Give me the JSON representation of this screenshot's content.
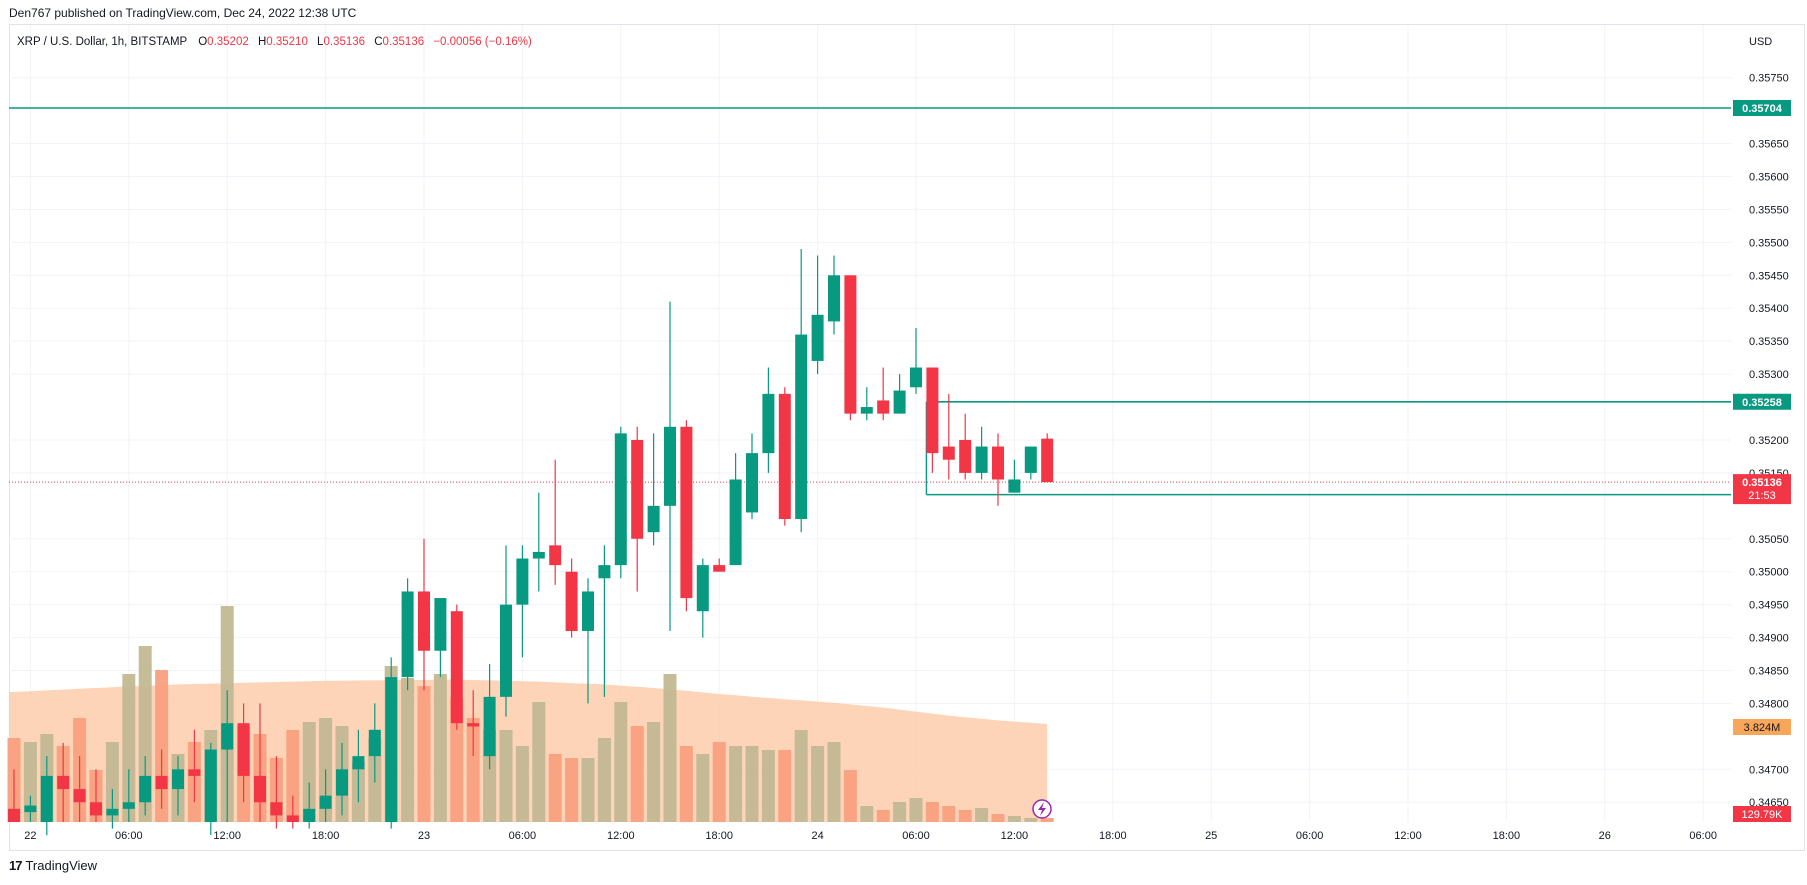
{
  "header": {
    "published": "Den767 published on TradingView.com, Dec 24, 2022 12:38 UTC"
  },
  "legend": {
    "symbol": "XRP / U.S. Dollar, 1h, BITSTAMP",
    "o_label": "O",
    "o_value": "0.35202",
    "h_label": "H",
    "h_value": "0.35210",
    "l_label": "L",
    "l_value": "0.35136",
    "c_label": "C",
    "c_value": "0.35136",
    "change": "−0.00056 (−0.16%)"
  },
  "footer": {
    "logo_glyph": "17",
    "brand": "TradingView"
  },
  "colors": {
    "up": "#089981",
    "down": "#f23645",
    "vol_up": "#c2b892",
    "vol_down": "#f9a07e",
    "vol_ma": "#fcc9a6",
    "grid": "#f0f3fa",
    "axis_text": "#131722",
    "level_line": "#089981",
    "price_line": "#f23645"
  },
  "chart_data": {
    "type": "candlestick",
    "currency_label": "USD",
    "ylim": [
      0.3462,
      0.3583
    ],
    "y_ticks": [
      "0.35750",
      "0.35650",
      "0.35600",
      "0.35550",
      "0.35500",
      "0.35450",
      "0.35400",
      "0.35350",
      "0.35300",
      "0.35200",
      "0.35150",
      "0.35050",
      "0.35000",
      "0.34950",
      "0.34900",
      "0.34850",
      "0.34800",
      "0.34700",
      "0.34650"
    ],
    "x_ticks": [
      {
        "label": "22",
        "hour": 1
      },
      {
        "label": "06:00",
        "hour": 7
      },
      {
        "label": "12:00",
        "hour": 13
      },
      {
        "label": "18:00",
        "hour": 19
      },
      {
        "label": "23",
        "hour": 25
      },
      {
        "label": "06:00",
        "hour": 31
      },
      {
        "label": "12:00",
        "hour": 37
      },
      {
        "label": "18:00",
        "hour": 43
      },
      {
        "label": "24",
        "hour": 49
      },
      {
        "label": "06:00",
        "hour": 55
      },
      {
        "label": "12:00",
        "hour": 61
      },
      {
        "label": "18:00",
        "hour": 67
      },
      {
        "label": "25",
        "hour": 73
      },
      {
        "label": "06:00",
        "hour": 79
      },
      {
        "label": "12:00",
        "hour": 85
      },
      {
        "label": "18:00",
        "hour": 91
      },
      {
        "label": "26",
        "hour": 97
      },
      {
        "label": "06:00",
        "hour": 103
      }
    ],
    "candles": [
      {
        "o": 0.3464,
        "h": 0.347,
        "l": 0.3462,
        "c": 0.3462
      },
      {
        "o": 0.34635,
        "h": 0.3466,
        "l": 0.3462,
        "c": 0.34645
      },
      {
        "o": 0.3462,
        "h": 0.3472,
        "l": 0.346,
        "c": 0.3469
      },
      {
        "o": 0.3469,
        "h": 0.3474,
        "l": 0.3462,
        "c": 0.3467
      },
      {
        "o": 0.3467,
        "h": 0.3472,
        "l": 0.3462,
        "c": 0.3465
      },
      {
        "o": 0.3465,
        "h": 0.347,
        "l": 0.3462,
        "c": 0.3463
      },
      {
        "o": 0.3463,
        "h": 0.3467,
        "l": 0.3461,
        "c": 0.3464
      },
      {
        "o": 0.3464,
        "h": 0.347,
        "l": 0.3462,
        "c": 0.3465
      },
      {
        "o": 0.3465,
        "h": 0.3472,
        "l": 0.3463,
        "c": 0.3469
      },
      {
        "o": 0.3469,
        "h": 0.3473,
        "l": 0.3464,
        "c": 0.3467
      },
      {
        "o": 0.3467,
        "h": 0.3472,
        "l": 0.3463,
        "c": 0.347
      },
      {
        "o": 0.347,
        "h": 0.3476,
        "l": 0.3465,
        "c": 0.3469
      },
      {
        "o": 0.3462,
        "h": 0.3474,
        "l": 0.346,
        "c": 0.3473
      },
      {
        "o": 0.3473,
        "h": 0.3482,
        "l": 0.3462,
        "c": 0.3477
      },
      {
        "o": 0.3477,
        "h": 0.348,
        "l": 0.3465,
        "c": 0.3469
      },
      {
        "o": 0.3469,
        "h": 0.348,
        "l": 0.3462,
        "c": 0.3465
      },
      {
        "o": 0.3465,
        "h": 0.3472,
        "l": 0.3461,
        "c": 0.3463
      },
      {
        "o": 0.3463,
        "h": 0.3466,
        "l": 0.3461,
        "c": 0.3462
      },
      {
        "o": 0.3462,
        "h": 0.3468,
        "l": 0.3461,
        "c": 0.3464
      },
      {
        "o": 0.3464,
        "h": 0.347,
        "l": 0.3462,
        "c": 0.3466
      },
      {
        "o": 0.3466,
        "h": 0.3474,
        "l": 0.3463,
        "c": 0.347
      },
      {
        "o": 0.347,
        "h": 0.3476,
        "l": 0.3465,
        "c": 0.3472
      },
      {
        "o": 0.3472,
        "h": 0.348,
        "l": 0.3468,
        "c": 0.3476
      },
      {
        "o": 0.3462,
        "h": 0.3487,
        "l": 0.3461,
        "c": 0.3484
      },
      {
        "o": 0.3484,
        "h": 0.3499,
        "l": 0.3482,
        "c": 0.3497
      },
      {
        "o": 0.3497,
        "h": 0.3505,
        "l": 0.3482,
        "c": 0.3488
      },
      {
        "o": 0.3488,
        "h": 0.3496,
        "l": 0.3484,
        "c": 0.3496
      },
      {
        "o": 0.3494,
        "h": 0.3495,
        "l": 0.3476,
        "c": 0.3477
      },
      {
        "o": 0.3477,
        "h": 0.3482,
        "l": 0.3472,
        "c": 0.34765
      },
      {
        "o": 0.3472,
        "h": 0.3486,
        "l": 0.347,
        "c": 0.3481
      },
      {
        "o": 0.3481,
        "h": 0.3504,
        "l": 0.3478,
        "c": 0.3495
      },
      {
        "o": 0.3495,
        "h": 0.3504,
        "l": 0.3487,
        "c": 0.3502
      },
      {
        "o": 0.3502,
        "h": 0.3512,
        "l": 0.3497,
        "c": 0.3503
      },
      {
        "o": 0.3504,
        "h": 0.3517,
        "l": 0.3498,
        "c": 0.3501
      },
      {
        "o": 0.35,
        "h": 0.3502,
        "l": 0.349,
        "c": 0.3491
      },
      {
        "o": 0.3491,
        "h": 0.3499,
        "l": 0.348,
        "c": 0.3497
      },
      {
        "o": 0.3499,
        "h": 0.3504,
        "l": 0.3481,
        "c": 0.3501
      },
      {
        "o": 0.3501,
        "h": 0.3522,
        "l": 0.3499,
        "c": 0.3521
      },
      {
        "o": 0.352,
        "h": 0.3522,
        "l": 0.3497,
        "c": 0.3505
      },
      {
        "o": 0.3506,
        "h": 0.3521,
        "l": 0.3504,
        "c": 0.351
      },
      {
        "o": 0.351,
        "h": 0.3541,
        "l": 0.3491,
        "c": 0.3522
      },
      {
        "o": 0.3522,
        "h": 0.3523,
        "l": 0.3494,
        "c": 0.3496
      },
      {
        "o": 0.3494,
        "h": 0.3502,
        "l": 0.349,
        "c": 0.3501
      },
      {
        "o": 0.3501,
        "h": 0.3502,
        "l": 0.35,
        "c": 0.35
      },
      {
        "o": 0.3501,
        "h": 0.3518,
        "l": 0.3501,
        "c": 0.3514
      },
      {
        "o": 0.3509,
        "h": 0.3521,
        "l": 0.3508,
        "c": 0.3518
      },
      {
        "o": 0.3518,
        "h": 0.3531,
        "l": 0.3515,
        "c": 0.3527
      },
      {
        "o": 0.3527,
        "h": 0.3528,
        "l": 0.3507,
        "c": 0.3508
      },
      {
        "o": 0.3508,
        "h": 0.3549,
        "l": 0.3506,
        "c": 0.3536
      },
      {
        "o": 0.3532,
        "h": 0.3548,
        "l": 0.353,
        "c": 0.3539
      },
      {
        "o": 0.3538,
        "h": 0.3548,
        "l": 0.3536,
        "c": 0.3545
      },
      {
        "o": 0.3545,
        "h": 0.3545,
        "l": 0.3523,
        "c": 0.3524
      },
      {
        "o": 0.3524,
        "h": 0.3528,
        "l": 0.3523,
        "c": 0.3525
      },
      {
        "o": 0.3526,
        "h": 0.3531,
        "l": 0.3523,
        "c": 0.3524
      },
      {
        "o": 0.3524,
        "h": 0.353,
        "l": 0.3524,
        "c": 0.35275
      },
      {
        "o": 0.3528,
        "h": 0.3537,
        "l": 0.3527,
        "c": 0.3531
      },
      {
        "o": 0.3531,
        "h": 0.3531,
        "l": 0.3515,
        "c": 0.3518
      },
      {
        "o": 0.3519,
        "h": 0.3527,
        "l": 0.3514,
        "c": 0.3517
      },
      {
        "o": 0.352,
        "h": 0.3524,
        "l": 0.3514,
        "c": 0.3515
      },
      {
        "o": 0.3515,
        "h": 0.3522,
        "l": 0.3514,
        "c": 0.3519
      },
      {
        "o": 0.3519,
        "h": 0.3521,
        "l": 0.351,
        "c": 0.3514
      },
      {
        "o": 0.3512,
        "h": 0.3517,
        "l": 0.3512,
        "c": 0.3514
      },
      {
        "o": 0.3515,
        "h": 0.3519,
        "l": 0.3514,
        "c": 0.3519
      },
      {
        "o": 0.35202,
        "h": 0.3521,
        "l": 0.35136,
        "c": 0.35136
      }
    ],
    "volume": {
      "max": 6.0,
      "values": [
        2.1,
        2.0,
        2.2,
        1.9,
        2.6,
        1.3,
        2.0,
        3.7,
        4.4,
        3.8,
        1.7,
        2.0,
        2.3,
        5.4,
        2.4,
        2.2,
        1.6,
        2.3,
        2.5,
        2.6,
        2.4,
        1.5,
        2.1,
        3.9,
        3.6,
        3.4,
        3.7,
        3.1,
        2.6,
        2.3,
        2.3,
        1.9,
        3.0,
        1.7,
        1.6,
        1.6,
        2.1,
        3.0,
        2.4,
        2.5,
        3.7,
        1.9,
        1.7,
        2.0,
        1.9,
        1.9,
        1.8,
        1.8,
        2.3,
        1.9,
        2.0,
        1.3,
        0.4,
        0.3,
        0.5,
        0.6,
        0.5,
        0.4,
        0.3,
        0.35,
        0.2,
        0.15,
        0.1,
        0.1
      ],
      "ma": [
        3.25,
        3.27,
        3.29,
        3.31,
        3.33,
        3.35,
        3.37,
        3.39,
        3.4,
        3.42,
        3.44,
        3.45,
        3.46,
        3.47,
        3.48,
        3.49,
        3.5,
        3.51,
        3.52,
        3.53,
        3.53,
        3.54,
        3.54,
        3.55,
        3.55,
        3.55,
        3.56,
        3.56,
        3.55,
        3.54,
        3.53,
        3.52,
        3.51,
        3.49,
        3.47,
        3.46,
        3.44,
        3.41,
        3.38,
        3.35,
        3.32,
        3.28,
        3.24,
        3.2,
        3.17,
        3.13,
        3.1,
        3.07,
        3.04,
        3.01,
        2.98,
        2.94,
        2.9,
        2.86,
        2.81,
        2.76,
        2.71,
        2.66,
        2.62,
        2.58,
        2.54,
        2.51,
        2.48,
        2.45
      ]
    },
    "levels": [
      {
        "price": 0.35704,
        "label": "0.35704",
        "start": "full"
      },
      {
        "price": 0.35258,
        "label": "0.35258",
        "start": 56
      },
      {
        "price": 0.35117,
        "label": "0.35117",
        "start": 56
      }
    ],
    "current_price": {
      "value": 0.35136,
      "label": "0.35136",
      "countdown": "21:53"
    },
    "volume_badges": [
      {
        "label": "3.824M",
        "color": "#f7a65a"
      },
      {
        "label": "129.79K",
        "color": "#f23645"
      }
    ]
  }
}
